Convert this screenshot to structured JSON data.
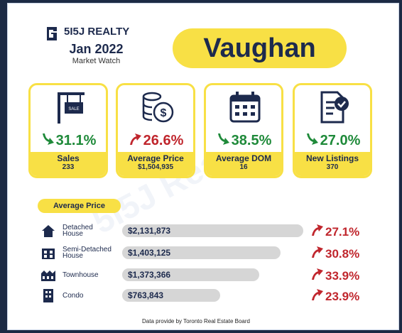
{
  "brand": "5I5J REALTY",
  "date": "Jan 2022",
  "subtitle": "Market Watch",
  "city": "Vaughan",
  "watermark": "5I5J Realty",
  "stats": [
    {
      "change": "31.1%",
      "trend": "down",
      "label": "Sales",
      "value": "233"
    },
    {
      "change": "26.6%",
      "trend": "up",
      "label": "Average Price",
      "value": "$1,504,935"
    },
    {
      "change": "38.5%",
      "trend": "down",
      "label": "Average DOM",
      "value": "16"
    },
    {
      "change": "27.0%",
      "trend": "down",
      "label": "New Listings",
      "value": "370"
    }
  ],
  "section_title": "Average Price",
  "rows": [
    {
      "name": [
        "Detached",
        "House"
      ],
      "price": "$2,131,873",
      "change": "27.1%"
    },
    {
      "name": [
        "Semi-Detached",
        "House"
      ],
      "price": "$1,403,125",
      "change": "30.8%"
    },
    {
      "name": [
        "Townhouse"
      ],
      "price": "$1,373,366",
      "change": "33.9%"
    },
    {
      "name": [
        "Condo"
      ],
      "price": "$763,843",
      "change": "23.9%"
    }
  ],
  "footer": "Data provide by Toronto Real Estate Board"
}
